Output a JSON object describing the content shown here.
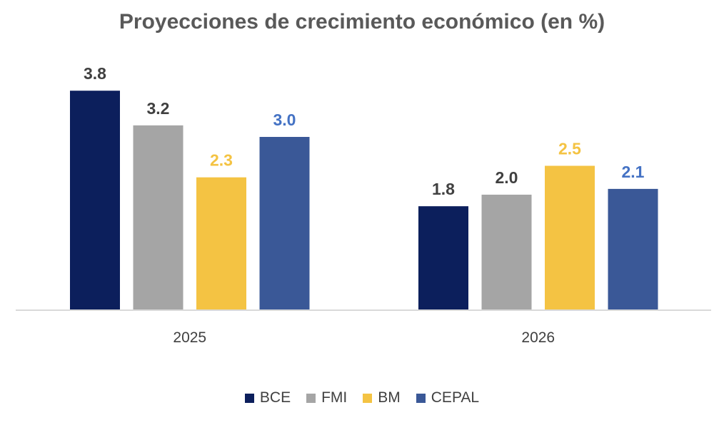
{
  "chart_data": {
    "type": "bar",
    "title": "Proyecciones de crecimiento económico (en %)",
    "categories": [
      "2025",
      "2026"
    ],
    "series": [
      {
        "name": "BCE",
        "values": [
          3.8,
          1.8
        ],
        "color": "#0c1f5c",
        "label_color": "#404040"
      },
      {
        "name": "FMI",
        "values": [
          3.2,
          2.0
        ],
        "color": "#a5a5a5",
        "label_color": "#404040"
      },
      {
        "name": "BM",
        "values": [
          2.3,
          2.5
        ],
        "color": "#f4c343",
        "label_color": "#f4c343"
      },
      {
        "name": "CEPAL",
        "values": [
          3.0,
          2.1
        ],
        "color": "#3a5897",
        "label_color": "#4472c4"
      }
    ],
    "ylim": [
      0,
      3.8
    ],
    "grid": false,
    "legend_position": "bottom",
    "xlabel": "",
    "ylabel": ""
  }
}
